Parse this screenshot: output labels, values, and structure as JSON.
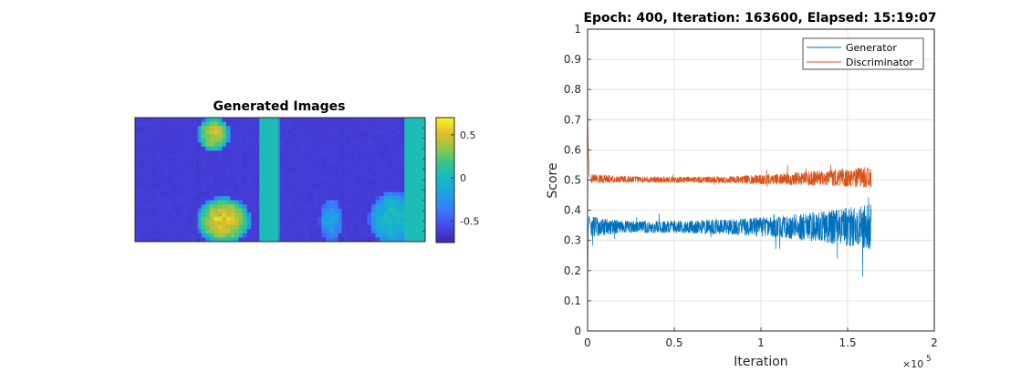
{
  "chart_data": [
    {
      "type": "heatmap",
      "title": "Generated Images",
      "colorbar": {
        "range": [
          -0.75,
          0.7
        ],
        "ticks": [
          0.5,
          0,
          -0.5
        ],
        "tick_labels": [
          "0.5",
          "0",
          "-0.5"
        ],
        "colormap": "parula"
      },
      "background_value": -0.62,
      "bands": [
        {
          "column": "4",
          "value": 0.05
        },
        {
          "column": "8",
          "value": 0.05
        }
      ],
      "blobs": [
        {
          "cell": "top-left",
          "peak": 0.45
        },
        {
          "cell": "bottom-left",
          "peak": 0.55
        },
        {
          "cell": "bottom-center",
          "peak": -0.2
        },
        {
          "cell": "bottom-right",
          "peak": 0.0
        }
      ]
    },
    {
      "type": "line",
      "title": "Epoch: 400, Iteration: 163600, Elapsed: 15:19:07",
      "xlabel": "Iteration",
      "ylabel": "Score",
      "xlim": [
        0,
        200000
      ],
      "ylim": [
        0,
        1
      ],
      "x_ticks": [
        0,
        50000,
        100000,
        150000,
        200000
      ],
      "x_tick_labels": [
        "0",
        "0.5",
        "1",
        "1.5",
        "2"
      ],
      "x_exponent_label": "×10",
      "x_exponent_power": "5",
      "y_ticks": [
        0,
        0.1,
        0.2,
        0.3,
        0.4,
        0.5,
        0.6,
        0.7,
        0.8,
        0.9,
        1
      ],
      "y_tick_labels": [
        "0",
        "0.1",
        "0.2",
        "0.3",
        "0.4",
        "0.5",
        "0.6",
        "0.7",
        "0.8",
        "0.9",
        "1"
      ],
      "grid": true,
      "legend_position": "top-right",
      "x_end": 163600,
      "series": [
        {
          "name": "Generator",
          "color": "#0072BD",
          "initial": [
            [
              0,
              0.1
            ],
            [
              300,
              0.33
            ],
            [
              800,
              0.38
            ],
            [
              2000,
              0.34
            ]
          ],
          "envelope": [
            {
              "x": 0,
              "mean": 0.34,
              "low": 0.31,
              "high": 0.38
            },
            {
              "x": 20000,
              "mean": 0.345,
              "low": 0.325,
              "high": 0.365
            },
            {
              "x": 50000,
              "mean": 0.345,
              "low": 0.325,
              "high": 0.365
            },
            {
              "x": 80000,
              "mean": 0.345,
              "low": 0.32,
              "high": 0.37
            },
            {
              "x": 110000,
              "mean": 0.345,
              "low": 0.31,
              "high": 0.38
            },
            {
              "x": 140000,
              "mean": 0.34,
              "low": 0.29,
              "high": 0.4
            },
            {
              "x": 163600,
              "mean": 0.34,
              "low": 0.27,
              "high": 0.42
            }
          ]
        },
        {
          "name": "Discriminator",
          "color": "#D95319",
          "initial": [
            [
              0,
              0.75
            ],
            [
              400,
              0.6
            ],
            [
              900,
              0.52
            ],
            [
              2000,
              0.505
            ]
          ],
          "envelope": [
            {
              "x": 0,
              "mean": 0.503,
              "low": 0.49,
              "high": 0.52
            },
            {
              "x": 20000,
              "mean": 0.502,
              "low": 0.492,
              "high": 0.514
            },
            {
              "x": 50000,
              "mean": 0.5,
              "low": 0.492,
              "high": 0.51
            },
            {
              "x": 80000,
              "mean": 0.5,
              "low": 0.49,
              "high": 0.512
            },
            {
              "x": 110000,
              "mean": 0.502,
              "low": 0.485,
              "high": 0.52
            },
            {
              "x": 140000,
              "mean": 0.505,
              "low": 0.48,
              "high": 0.535
            },
            {
              "x": 163600,
              "mean": 0.505,
              "low": 0.475,
              "high": 0.545
            }
          ]
        }
      ]
    }
  ]
}
